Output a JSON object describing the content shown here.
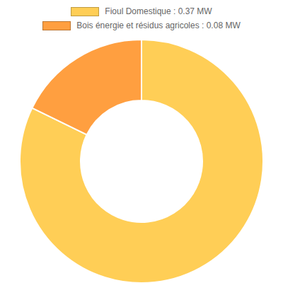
{
  "chart_data": {
    "type": "doughnut",
    "categories": [
      "Fioul Domestique : 0.37 MW",
      "Bois énergie et résidus agricoles : 0.08 MW"
    ],
    "values": [
      0.37,
      0.08
    ],
    "colors": [
      "#ffce56",
      "#ff9f40"
    ]
  }
}
